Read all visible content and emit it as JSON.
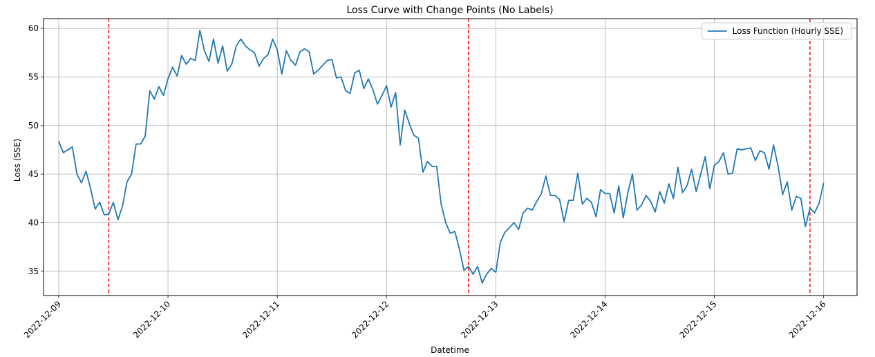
{
  "chart_data": {
    "type": "line",
    "title": "Loss Curve with Change Points (No Labels)",
    "xlabel": "Datetime",
    "ylabel": "Loss (SSE)",
    "xlim": [
      "2022-12-08T20:40",
      "2022-12-16T07:20"
    ],
    "ylim": [
      32.5,
      61.0
    ],
    "yticks": [
      35,
      40,
      45,
      50,
      55,
      60
    ],
    "xticks": [
      "2022-12-09",
      "2022-12-10",
      "2022-12-11",
      "2022-12-12",
      "2022-12-13",
      "2022-12-14",
      "2022-12-15",
      "2022-12-16"
    ],
    "grid": true,
    "legend_position": "top-right",
    "series": [
      {
        "name": "Loss Function (Hourly SSE)",
        "color": "#1f77b4",
        "start": "2022-12-09T00:00",
        "step_hours": 1,
        "values": [
          48.4,
          47.2,
          47.5,
          47.8,
          45.0,
          44.1,
          45.3,
          43.5,
          41.4,
          42.1,
          40.8,
          40.9,
          42.1,
          40.3,
          41.7,
          44.2,
          45.0,
          48.1,
          48.1,
          48.9,
          53.6,
          52.7,
          54.0,
          53.1,
          54.8,
          56.0,
          55.1,
          57.2,
          56.3,
          56.9,
          56.7,
          59.8,
          57.7,
          56.6,
          58.9,
          56.4,
          58.2,
          55.6,
          56.3,
          58.2,
          58.9,
          58.2,
          57.8,
          57.5,
          56.1,
          56.9,
          57.3,
          58.9,
          57.8,
          55.3,
          57.7,
          56.7,
          56.2,
          57.6,
          57.9,
          57.6,
          55.3,
          55.7,
          56.2,
          56.7,
          56.8,
          54.9,
          55.0,
          53.6,
          53.3,
          55.4,
          55.7,
          53.8,
          54.8,
          53.7,
          52.2,
          53.1,
          54.1,
          51.9,
          53.4,
          48.0,
          51.6,
          50.2,
          49.0,
          48.7,
          45.2,
          46.3,
          45.8,
          45.8,
          41.9,
          40.0,
          38.9,
          39.1,
          37.3,
          35.1,
          35.5,
          34.7,
          35.5,
          33.8,
          34.7,
          35.3,
          34.9,
          38.0,
          39.0,
          39.5,
          40.0,
          39.3,
          41.0,
          41.5,
          41.3,
          42.2,
          43.0,
          44.8,
          42.8,
          42.8,
          42.4,
          40.1,
          42.3,
          42.3,
          45.1,
          41.9,
          42.5,
          42.1,
          40.6,
          43.4,
          43.0,
          43.0,
          41.0,
          43.8,
          40.5,
          43.1,
          45.0,
          41.3,
          41.8,
          42.8,
          42.2,
          41.1,
          43.2,
          42.0,
          44.0,
          42.5,
          45.7,
          43.1,
          43.8,
          45.5,
          43.2,
          45.0,
          46.8,
          43.5,
          45.9,
          46.3,
          47.2,
          45.0,
          45.1,
          47.6,
          47.5,
          47.6,
          47.7,
          46.4,
          47.4,
          47.2,
          45.5,
          48.0,
          45.8,
          42.9,
          44.2,
          41.3,
          42.7,
          42.5,
          39.6,
          41.5,
          41.0,
          42.0,
          44.1
        ]
      }
    ],
    "change_points": {
      "color": "#ff0000",
      "style": "dashed",
      "x": [
        "2022-12-09T11:00",
        "2022-12-12T18:00",
        "2022-12-15T21:00"
      ]
    }
  }
}
